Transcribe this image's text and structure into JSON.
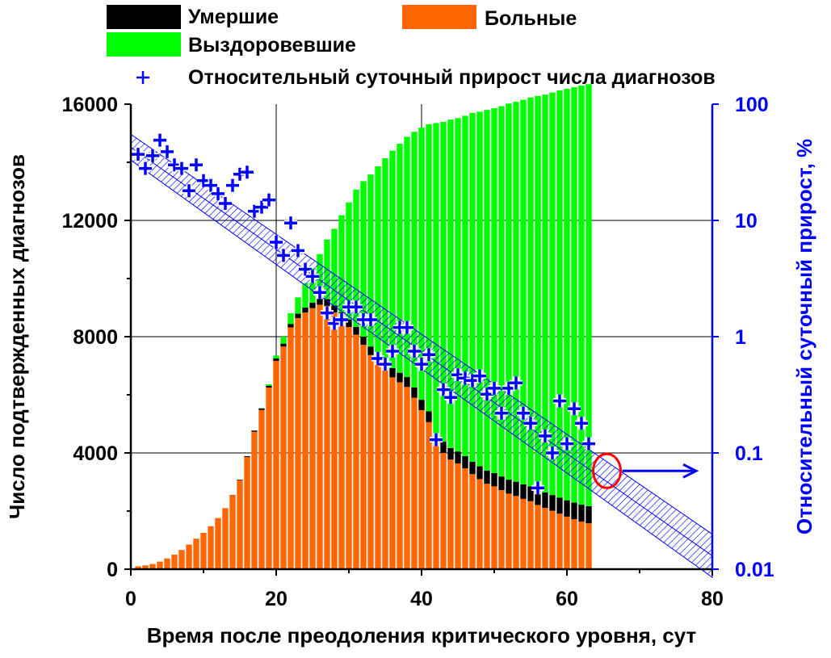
{
  "colors": {
    "sick": "#ff6600",
    "dead": "#000000",
    "recovered": "#00ff00",
    "rate_marker": "#0000ff",
    "band": "#0000ff",
    "highlight_circle": "#ff0000",
    "grid": "#000000"
  },
  "legend": {
    "dead": "Умершие",
    "sick": "Больные",
    "recovered": "Выздоровевшие",
    "rate": "Относительный суточный прирост числа диагнозов"
  },
  "chart_data": {
    "type": "bar",
    "xlabel": "Время после преодоления критического уровня, сут",
    "ylabel": "Число подтвержденных диагнозов",
    "y2label": "Относительный суточный прирост, %",
    "xlim": [
      0,
      80
    ],
    "ylim": [
      0,
      16000
    ],
    "y2lim": [
      0.01,
      100
    ],
    "y2scale": "log",
    "x_ticks": [
      "0",
      "20",
      "40",
      "60",
      "80"
    ],
    "y_ticks": [
      "0",
      "4000",
      "8000",
      "12000",
      "16000"
    ],
    "y2_ticks": [
      "0.01",
      "0.1",
      "1",
      "10",
      "100"
    ],
    "grid": true,
    "legend_position": "top",
    "bars_stacked": {
      "day": [
        1,
        2,
        3,
        4,
        5,
        6,
        7,
        8,
        9,
        10,
        11,
        12,
        13,
        14,
        15,
        16,
        17,
        18,
        19,
        20,
        21,
        22,
        23,
        24,
        25,
        26,
        27,
        28,
        29,
        30,
        31,
        32,
        33,
        34,
        35,
        36,
        37,
        38,
        39,
        40,
        41,
        42,
        43,
        44,
        45,
        46,
        47,
        48,
        49,
        50,
        51,
        52,
        53,
        54,
        55,
        56,
        57,
        58,
        59,
        60,
        61,
        62,
        63
      ],
      "series": [
        {
          "name": "Больные",
          "values": [
            100,
            130,
            180,
            260,
            370,
            500,
            660,
            850,
            1050,
            1250,
            1480,
            1760,
            2100,
            2540,
            3060,
            3860,
            4730,
            5480,
            6250,
            7170,
            7660,
            8320,
            8640,
            8830,
            8980,
            9100,
            9060,
            8830,
            8590,
            8330,
            8070,
            7720,
            7370,
            7090,
            6830,
            6600,
            6430,
            6270,
            5900,
            5470,
            5060,
            4250,
            4000,
            3770,
            3640,
            3470,
            3270,
            3100,
            2940,
            2850,
            2720,
            2600,
            2520,
            2420,
            2340,
            2210,
            2110,
            2010,
            1910,
            1810,
            1720,
            1640,
            1580
          ]
        },
        {
          "name": "Умершие",
          "values": [
            0,
            0,
            0,
            0,
            0,
            0,
            0,
            0,
            0,
            0,
            0,
            0,
            0,
            10,
            20,
            30,
            40,
            50,
            60,
            80,
            100,
            120,
            150,
            170,
            190,
            210,
            230,
            240,
            250,
            260,
            270,
            280,
            290,
            300,
            310,
            320,
            330,
            340,
            350,
            360,
            370,
            380,
            390,
            400,
            410,
            420,
            430,
            440,
            450,
            460,
            470,
            480,
            490,
            500,
            510,
            520,
            530,
            540,
            550,
            560,
            570,
            580,
            590
          ]
        },
        {
          "name": "Выздоровевшие",
          "values": [
            0,
            0,
            0,
            0,
            0,
            0,
            0,
            0,
            0,
            0,
            0,
            0,
            0,
            0,
            0,
            0,
            0,
            10,
            50,
            100,
            240,
            370,
            560,
            840,
            1170,
            1530,
            2050,
            2640,
            3340,
            4030,
            4720,
            5350,
            5920,
            6470,
            7000,
            7480,
            7880,
            8270,
            8800,
            9360,
            9880,
            10720,
            11000,
            11300,
            11470,
            11710,
            12000,
            12200,
            12410,
            12550,
            12740,
            12940,
            13070,
            13230,
            13380,
            13550,
            13690,
            13850,
            14010,
            14160,
            14290,
            14420,
            14520
          ]
        }
      ]
    },
    "rate_points": {
      "name": "Относительный суточный прирост числа диагнозов",
      "x": [
        1,
        2,
        3,
        4,
        5,
        6,
        7,
        8,
        9,
        10,
        11,
        12,
        13,
        14,
        15,
        16,
        17,
        18,
        19,
        20,
        21,
        22,
        23,
        24,
        25,
        26,
        27,
        28,
        29,
        30,
        31,
        32,
        33,
        34,
        35,
        36,
        37,
        38,
        39,
        40,
        41,
        42,
        43,
        44,
        45,
        46,
        47,
        48,
        49,
        50,
        51,
        52,
        53,
        54,
        55,
        56,
        57,
        58,
        59,
        60,
        61,
        62,
        63
      ],
      "y": [
        37,
        28,
        36,
        49,
        39,
        30,
        28,
        18,
        30,
        22,
        20,
        17,
        14,
        20,
        25,
        26,
        12,
        13,
        15,
        6.5,
        5,
        9.5,
        5.5,
        3.8,
        3.3,
        2.4,
        1.6,
        1.3,
        1.4,
        1.8,
        1.8,
        1.4,
        1.4,
        0.65,
        0.58,
        0.75,
        1.2,
        1.2,
        0.75,
        0.58,
        0.7,
        0.13,
        0.35,
        0.3,
        0.47,
        0.44,
        0.42,
        0.46,
        0.32,
        0.36,
        0.22,
        0.36,
        0.4,
        0.22,
        0.18,
        0.05,
        0.14,
        0.1,
        0.28,
        0.12,
        0.24,
        0.18,
        0.12
      ]
    },
    "trend_band": {
      "x": [
        0,
        80
      ],
      "upper": [
        55,
        0.02
      ],
      "lower": [
        33,
        0.0085
      ]
    },
    "annotation": {
      "type": "circle-arrow",
      "x": 65.5,
      "y2": 0.07,
      "points_to": "right axis"
    }
  }
}
